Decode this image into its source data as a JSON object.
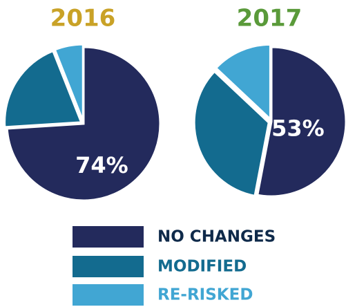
{
  "chart_data": [
    {
      "type": "pie",
      "title": "2016",
      "title_color": "#c9a227",
      "categories": [
        "NO CHANGES",
        "MODIFIED",
        "RE-RISKED"
      ],
      "values": [
        74,
        20,
        6
      ],
      "value_labels": [
        "74%",
        null,
        null
      ],
      "colors": [
        "#232a5c",
        "#136b8f",
        "#41a6d3"
      ]
    },
    {
      "type": "pie",
      "title": "2017",
      "title_color": "#5a9a3a",
      "categories": [
        "NO CHANGES",
        "MODIFIED",
        "RE-RISKED"
      ],
      "values": [
        53,
        34,
        13
      ],
      "value_labels": [
        "53%",
        null,
        null
      ],
      "colors": [
        "#232a5c",
        "#136b8f",
        "#41a6d3"
      ]
    }
  ]
}
